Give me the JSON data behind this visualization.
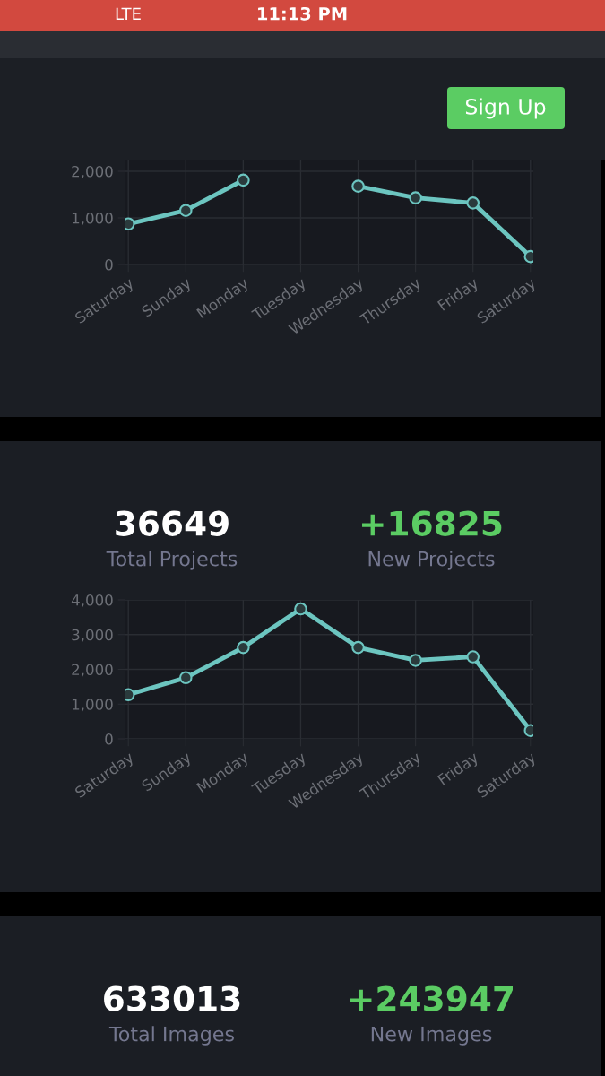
{
  "chart_data": [
    {
      "type": "other",
      "annotations": [
        "LTE",
        "11:13 PM",
        "Sign Up"
      ]
    },
    {
      "type": "line",
      "categories": [
        "Saturday",
        "Sunday",
        "Monday",
        "Tuesday",
        "Wednesday",
        "Thursday",
        "Friday",
        "Saturday"
      ],
      "series": [
        {
          "color": "#6cc5c0",
          "values": [
            870,
            1160,
            1810,
            null,
            1680,
            1430,
            1320,
            170
          ]
        }
      ],
      "ylim": [
        0,
        2250
      ],
      "yticks": [
        {
          "value": 0,
          "label": "0"
        },
        {
          "value": 1000,
          "label": "1,000"
        },
        {
          "value": 2000,
          "label": "2,000"
        }
      ],
      "grid": true,
      "marker": "circle",
      "line_style": "solid"
    },
    {
      "type": "other",
      "annotations": [
        "36649",
        "+16825",
        "Total Projects",
        "New Projects"
      ]
    },
    {
      "type": "line",
      "categories": [
        "Saturday",
        "Sunday",
        "Monday",
        "Tuesday",
        "Wednesday",
        "Thursday",
        "Friday",
        "Saturday"
      ],
      "series": [
        {
          "color": "#6cc5c0",
          "values": [
            1270,
            1760,
            2630,
            3740,
            2630,
            2260,
            2360,
            240
          ]
        }
      ],
      "ylim": [
        0,
        4000
      ],
      "yticks": [
        {
          "value": 0,
          "label": "0"
        },
        {
          "value": 1000,
          "label": "1,000"
        },
        {
          "value": 2000,
          "label": "2,000"
        },
        {
          "value": 3000,
          "label": "3,000"
        },
        {
          "value": 4000,
          "label": "4,000"
        }
      ],
      "grid": true,
      "marker": "circle",
      "line_style": "solid"
    },
    {
      "type": "other",
      "annotations": [
        "633013",
        "+243947",
        "Total Images",
        "New Images"
      ]
    }
  ]
}
